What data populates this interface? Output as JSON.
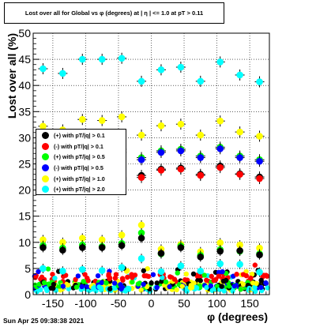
{
  "title": "Lost over all for Global vs φ (degrees) at | η | <= 1.0 at pT > 0.11",
  "timestamp": "Sun Apr 25 09:38:38 2021",
  "chart_data": {
    "type": "scatter",
    "xlabel": "φ (degrees)",
    "ylabel": "Lost over all (%)",
    "xlim": [
      -180,
      180
    ],
    "ylim": [
      0,
      50
    ],
    "x_ticks": [
      -150,
      -100,
      -50,
      0,
      50,
      100,
      150
    ],
    "y_ticks": [
      0,
      5,
      10,
      15,
      20,
      25,
      30,
      35,
      40,
      45,
      50
    ],
    "grid": true,
    "legend_position": "middle-left",
    "series": [
      {
        "name": "(+) with pT/|q| > 0.1",
        "color": "#000000",
        "x": [
          -165,
          -135,
          -105,
          -75,
          -45,
          -15,
          15,
          45,
          75,
          105,
          135,
          165
        ],
        "y": [
          23.5,
          24.0,
          23.8,
          24.5,
          22.3,
          22.8,
          24.0,
          24.2,
          23.0,
          24.6,
          23.1,
          22.5
        ]
      },
      {
        "name": "(-) with pT/|q| > 0.1",
        "color": "#ff0000",
        "x": [
          -165,
          -135,
          -105,
          -75,
          -45,
          -15,
          15,
          45,
          75,
          105,
          135,
          165
        ],
        "y": [
          23.0,
          23.5,
          23.2,
          24.0,
          22.0,
          22.4,
          23.8,
          24.0,
          22.8,
          24.3,
          23.0,
          22.2
        ]
      },
      {
        "name": "(+) with pT/|q| > 0.5",
        "color": "#00ff00",
        "x": [
          -165,
          -135,
          -105,
          -75,
          -45,
          -15,
          15,
          45,
          75,
          105,
          135,
          165
        ],
        "y": [
          28.0,
          27.8,
          28.2,
          27.5,
          27.8,
          26.2,
          27.5,
          27.8,
          26.5,
          28.2,
          26.5,
          25.8
        ]
      },
      {
        "name": "(-) with pT/|q| > 0.5",
        "color": "#0000ff",
        "x": [
          -165,
          -135,
          -105,
          -75,
          -45,
          -15,
          15,
          45,
          75,
          105,
          135,
          165
        ],
        "y": [
          27.5,
          27.2,
          27.8,
          27.0,
          27.2,
          25.8,
          27.2,
          27.5,
          26.2,
          27.9,
          26.2,
          25.5
        ]
      },
      {
        "name": "(+) with pT/|q| > 1.0",
        "color": "#ffff00",
        "x": [
          -165,
          -135,
          -105,
          -75,
          -45,
          -15,
          15,
          45,
          75,
          105,
          135,
          165
        ],
        "y": [
          32.2,
          31.5,
          33.5,
          33.3,
          34.0,
          30.5,
          32.3,
          32.6,
          30.5,
          33.2,
          31.1,
          30.3
        ]
      },
      {
        "name": "(+) with pT/|q| > 2.0",
        "color": "#00ffff",
        "x": [
          -165,
          -135,
          -105,
          -75,
          -45,
          -15,
          15,
          45,
          75,
          105,
          135,
          165
        ],
        "y": [
          43.2,
          42.3,
          45.0,
          45.0,
          45.2,
          40.8,
          43.0,
          43.5,
          40.8,
          44.5,
          42.0,
          40.7
        ]
      }
    ]
  }
}
